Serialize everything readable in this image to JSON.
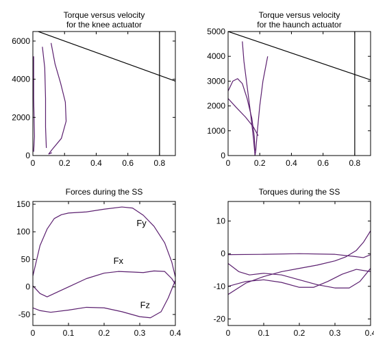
{
  "colors": {
    "axis": "#000000",
    "curve": "#5a1e6e",
    "background": "#ffffff"
  },
  "chart_data": [
    {
      "type": "line",
      "title": "Torque versus velocity",
      "subtitle": "for the knee actuator",
      "xlim": [
        0,
        0.9
      ],
      "ylim": [
        0,
        6500
      ],
      "xticks": [
        0,
        0.2,
        0.4,
        0.6,
        0.8
      ],
      "xtick_labels": [
        "0",
        "0.2",
        "0.4",
        "0.6",
        "0.8"
      ],
      "yticks": [
        0,
        2000,
        4000,
        6000
      ],
      "ytick_labels": [
        "0",
        "2000",
        "4000",
        "6000"
      ],
      "grid": false,
      "series": [
        {
          "color": "#000000",
          "points": [
            [
              0,
              6600
            ],
            [
              0.9,
              3900
            ]
          ]
        },
        {
          "color": "#000000",
          "points": [
            [
              0.8,
              0
            ],
            [
              0.8,
              6500
            ]
          ]
        },
        {
          "color": "#5a1e6e",
          "points": [
            [
              0.005,
              5200
            ],
            [
              0.005,
              3000
            ],
            [
              0.01,
              1000
            ],
            [
              0.005,
              200
            ]
          ]
        },
        {
          "color": "#5a1e6e",
          "points": [
            [
              0.06,
              5700
            ],
            [
              0.075,
              4600
            ],
            [
              0.08,
              3000
            ],
            [
              0.08,
              1500
            ],
            [
              0.085,
              400
            ]
          ]
        },
        {
          "color": "#5a1e6e",
          "points": [
            [
              0.115,
              5900
            ],
            [
              0.14,
              4800
            ],
            [
              0.175,
              3800
            ],
            [
              0.205,
              2800
            ],
            [
              0.21,
              1800
            ],
            [
              0.18,
              900
            ],
            [
              0.12,
              300
            ],
            [
              0.1,
              80
            ],
            [
              0.12,
              150
            ]
          ]
        }
      ]
    },
    {
      "type": "line",
      "title": "Torque versus velocity",
      "subtitle": "for the haunch actuator",
      "xlim": [
        0,
        0.9
      ],
      "ylim": [
        0,
        5000
      ],
      "xticks": [
        0,
        0.2,
        0.4,
        0.6,
        0.8
      ],
      "xtick_labels": [
        "0",
        "0.2",
        "0.4",
        "0.6",
        "0.8"
      ],
      "yticks": [
        0,
        1000,
        2000,
        3000,
        4000,
        5000
      ],
      "ytick_labels": [
        "0",
        "1000",
        "2000",
        "3000",
        "4000",
        "5000"
      ],
      "grid": false,
      "series": [
        {
          "color": "#000000",
          "points": [
            [
              0,
              5000
            ],
            [
              0.9,
              3050
            ]
          ]
        },
        {
          "color": "#000000",
          "points": [
            [
              0.8,
              0
            ],
            [
              0.8,
              5000
            ]
          ]
        },
        {
          "color": "#5a1e6e",
          "points": [
            [
              0.0,
              2600
            ],
            [
              0.03,
              3000
            ],
            [
              0.06,
              3100
            ],
            [
              0.09,
              2900
            ],
            [
              0.12,
              2300
            ],
            [
              0.15,
              1500
            ],
            [
              0.165,
              800
            ],
            [
              0.17,
              200
            ]
          ]
        },
        {
          "color": "#5a1e6e",
          "points": [
            [
              0.0,
              2300
            ],
            [
              0.05,
              1950
            ],
            [
              0.11,
              1550
            ],
            [
              0.16,
              1150
            ],
            [
              0.19,
              800
            ]
          ]
        },
        {
          "color": "#5a1e6e",
          "points": [
            [
              0.09,
              4600
            ],
            [
              0.1,
              3800
            ],
            [
              0.12,
              2800
            ],
            [
              0.14,
              1800
            ],
            [
              0.16,
              700
            ],
            [
              0.17,
              0
            ]
          ]
        },
        {
          "color": "#5a1e6e",
          "points": [
            [
              0.25,
              4000
            ],
            [
              0.22,
              3000
            ],
            [
              0.2,
              2000
            ],
            [
              0.185,
              1000
            ],
            [
              0.175,
              200
            ],
            [
              0.17,
              0
            ]
          ]
        }
      ]
    },
    {
      "type": "line",
      "title": "Forces during the SS",
      "xlim": [
        0,
        0.4
      ],
      "ylim": [
        -70,
        155
      ],
      "xticks": [
        0,
        0.1,
        0.2,
        0.3,
        0.4
      ],
      "xtick_labels": [
        "0",
        "0.1",
        "0.2",
        "0.3",
        "0.4"
      ],
      "yticks": [
        -50,
        0,
        50,
        100,
        150
      ],
      "ytick_labels": [
        "-50",
        "0",
        "50",
        "100",
        "150"
      ],
      "grid": false,
      "annotations": [
        {
          "text": "Fy",
          "x": 0.305,
          "y": 110
        },
        {
          "text": "Fx",
          "x": 0.24,
          "y": 42
        },
        {
          "text": "Fz",
          "x": 0.315,
          "y": -38
        }
      ],
      "series": [
        {
          "name": "Fy",
          "color": "#5a1e6e",
          "points": [
            [
              0,
              20
            ],
            [
              0.02,
              75
            ],
            [
              0.04,
              105
            ],
            [
              0.06,
              124
            ],
            [
              0.08,
              131
            ],
            [
              0.1,
              134
            ],
            [
              0.15,
              136
            ],
            [
              0.2,
              141
            ],
            [
              0.25,
              145
            ],
            [
              0.28,
              143
            ],
            [
              0.31,
              130
            ],
            [
              0.34,
              110
            ],
            [
              0.37,
              80
            ],
            [
              0.39,
              45
            ],
            [
              0.4,
              18
            ]
          ]
        },
        {
          "name": "Fx",
          "color": "#5a1e6e",
          "points": [
            [
              0,
              2
            ],
            [
              0.02,
              -12
            ],
            [
              0.04,
              -18
            ],
            [
              0.06,
              -12
            ],
            [
              0.1,
              0
            ],
            [
              0.15,
              15
            ],
            [
              0.2,
              25
            ],
            [
              0.24,
              28
            ],
            [
              0.28,
              27
            ],
            [
              0.31,
              26
            ],
            [
              0.34,
              29
            ],
            [
              0.37,
              28
            ],
            [
              0.39,
              15
            ],
            [
              0.4,
              5
            ]
          ]
        },
        {
          "name": "Fz",
          "color": "#5a1e6e",
          "points": [
            [
              0,
              -38
            ],
            [
              0.02,
              -43
            ],
            [
              0.05,
              -46
            ],
            [
              0.1,
              -42
            ],
            [
              0.15,
              -37
            ],
            [
              0.2,
              -38
            ],
            [
              0.25,
              -45
            ],
            [
              0.3,
              -54
            ],
            [
              0.33,
              -56
            ],
            [
              0.36,
              -45
            ],
            [
              0.38,
              -20
            ],
            [
              0.4,
              12
            ]
          ]
        }
      ]
    },
    {
      "type": "line",
      "title": "Torques during the SS",
      "xlim": [
        0,
        0.4
      ],
      "ylim": [
        -22,
        16
      ],
      "xticks": [
        0,
        0.1,
        0.2,
        0.3,
        0.4
      ],
      "xtick_labels": [
        "0",
        "0.1",
        "0.2",
        "0.3",
        "0.4"
      ],
      "yticks": [
        -20,
        -10,
        0,
        10
      ],
      "ytick_labels": [
        "-20",
        "-10",
        "0",
        "10"
      ],
      "grid": false,
      "series": [
        {
          "color": "#5a1e6e",
          "points": [
            [
              0,
              -0.3
            ],
            [
              0.1,
              -0.2
            ],
            [
              0.2,
              0
            ],
            [
              0.3,
              -0.2
            ],
            [
              0.35,
              -0.8
            ],
            [
              0.38,
              -1.2
            ],
            [
              0.4,
              -0.3
            ]
          ]
        },
        {
          "color": "#5a1e6e",
          "points": [
            [
              0,
              -12.5
            ],
            [
              0.05,
              -9
            ],
            [
              0.1,
              -7
            ],
            [
              0.15,
              -5.5
            ],
            [
              0.2,
              -4.5
            ],
            [
              0.25,
              -3.5
            ],
            [
              0.3,
              -2.2
            ],
            [
              0.33,
              -1
            ],
            [
              0.36,
              1
            ],
            [
              0.38,
              3.5
            ],
            [
              0.4,
              7
            ]
          ]
        },
        {
          "color": "#5a1e6e",
          "points": [
            [
              0,
              -3
            ],
            [
              0.03,
              -5.5
            ],
            [
              0.06,
              -6.5
            ],
            [
              0.1,
              -6
            ],
            [
              0.15,
              -6.5
            ],
            [
              0.2,
              -8
            ],
            [
              0.25,
              -9.5
            ],
            [
              0.3,
              -10.5
            ],
            [
              0.34,
              -10.5
            ],
            [
              0.37,
              -8.5
            ],
            [
              0.4,
              -4.5
            ]
          ]
        },
        {
          "color": "#5a1e6e",
          "points": [
            [
              0,
              -10
            ],
            [
              0.05,
              -8.5
            ],
            [
              0.1,
              -8
            ],
            [
              0.15,
              -8.8
            ],
            [
              0.2,
              -10.3
            ],
            [
              0.24,
              -10.3
            ],
            [
              0.28,
              -8.5
            ],
            [
              0.32,
              -6.3
            ],
            [
              0.36,
              -4.8
            ],
            [
              0.4,
              -5.5
            ]
          ]
        }
      ]
    }
  ]
}
